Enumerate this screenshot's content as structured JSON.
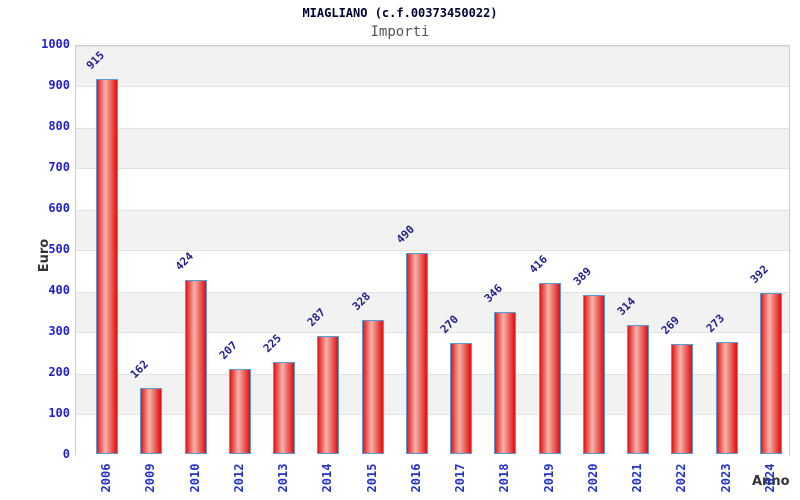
{
  "chart_data": {
    "type": "bar",
    "title": "MIAGLIANO (c.f.00373450022)",
    "subtitle": "Importi",
    "xlabel": "Anno",
    "ylabel": "Euro",
    "categories": [
      "2006",
      "2009",
      "2010",
      "2012",
      "2013",
      "2014",
      "2015",
      "2016",
      "2017",
      "2018",
      "2019",
      "2020",
      "2021",
      "2022",
      "2023",
      "2024"
    ],
    "values": [
      915,
      162,
      424,
      207,
      225,
      287,
      328,
      490,
      270,
      346,
      416,
      389,
      314,
      269,
      273,
      392
    ],
    "ylim": [
      0,
      1000
    ],
    "ytick_step": 100,
    "grid": "alternating horizontal bands per 100 units, gray on top band",
    "legend": "none",
    "bar_labels_rotation_deg": -45,
    "xtick_rotation_deg": -90,
    "colors": {
      "bar_edge_red": "#e01818",
      "bar_highlight": "#f7b3aa",
      "bar_border": "#5b9bd5",
      "tick_label_blue": "#2222cc",
      "value_label_navy": "#1f1f8f",
      "title": "#000033",
      "subtitle": "#555555",
      "axis_label": "#333333",
      "band_gray": "#f2f2f2",
      "plot_border": "#cccccc",
      "background": "#ffffff"
    }
  }
}
